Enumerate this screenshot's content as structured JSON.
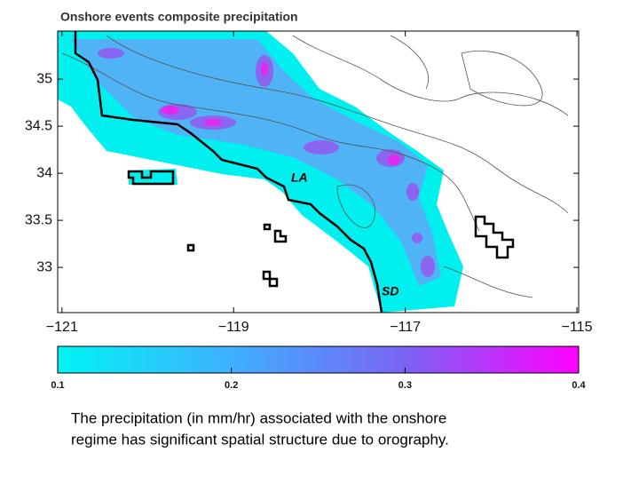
{
  "map": {
    "title": "Onshore events composite precipitation",
    "xlim": [
      -121.05,
      -114.98
    ],
    "ylim": [
      32.52,
      35.51
    ],
    "xticks": [
      {
        "value": -121,
        "label": "−121"
      },
      {
        "value": -119,
        "label": "−119"
      },
      {
        "value": -117,
        "label": "−117"
      },
      {
        "value": -115,
        "label": "−115"
      }
    ],
    "yticks": [
      35,
      34.5,
      34,
      33.5,
      33
    ],
    "labels": [
      "LA",
      "SD"
    ],
    "colorbar": {
      "lim": [
        0.1,
        0.4
      ],
      "ticks": [
        0.1,
        0.2,
        0.3,
        0.4
      ],
      "colormap": [
        "#00f4f4",
        "#3fb0ff",
        "#7a64f4",
        "#ff00ff"
      ]
    }
  },
  "caption": {
    "lines": [
      "The precipitation (in mm/hr) associated with the onshore",
      "regime has significant spatial structure due to orography."
    ]
  }
}
